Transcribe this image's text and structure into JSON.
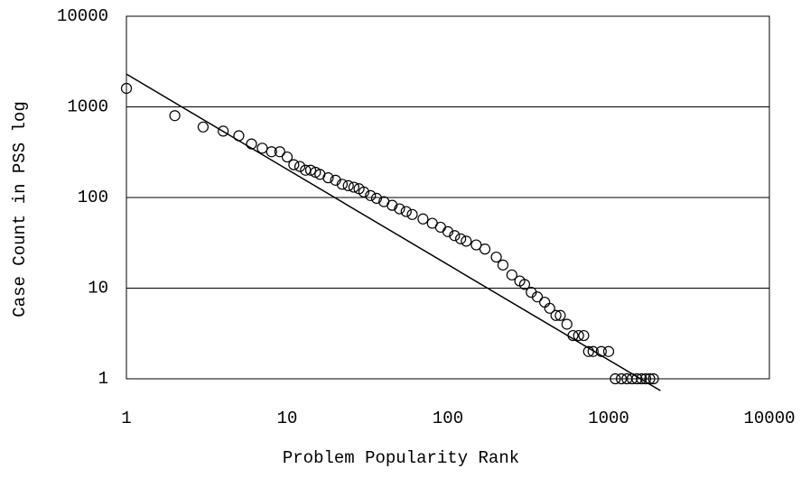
{
  "chart_data": {
    "type": "scatter",
    "x_label": "Problem Popularity Rank",
    "y_label": "Case Count in PSS log",
    "xlim": [
      1,
      10000
    ],
    "ylim": [
      1,
      10000
    ],
    "xticks": [
      1,
      10,
      100,
      1000,
      10000
    ],
    "yticks": [
      1,
      10,
      100,
      1000,
      10000
    ],
    "xlog": true,
    "ylog": true,
    "grid": true,
    "series": [
      {
        "type": "scatter",
        "color": "#000000",
        "x": [
          1,
          2,
          3,
          4,
          5,
          6,
          7,
          8,
          9,
          10,
          11,
          12,
          13,
          14,
          15,
          16,
          18,
          20,
          22,
          24,
          26,
          28,
          30,
          33,
          36,
          40,
          45,
          50,
          55,
          60,
          70,
          80,
          90,
          100,
          110,
          120,
          130,
          150,
          170,
          200,
          220,
          250,
          280,
          300,
          330,
          360,
          400,
          430,
          470,
          500,
          550,
          600,
          650,
          700,
          750,
          800,
          900,
          1000,
          1100,
          1200,
          1300,
          1400,
          1500,
          1600,
          1700,
          1800,
          1900
        ],
        "values": [
          1600,
          800,
          600,
          540,
          480,
          390,
          350,
          320,
          320,
          280,
          230,
          220,
          200,
          200,
          190,
          180,
          165,
          155,
          140,
          135,
          130,
          125,
          115,
          105,
          98,
          90,
          82,
          75,
          70,
          65,
          58,
          52,
          47,
          42,
          38,
          35,
          33,
          30,
          27,
          22,
          18,
          14,
          12,
          11,
          9,
          8,
          7,
          6,
          5,
          5,
          4,
          3,
          3,
          3,
          2,
          2,
          2,
          2,
          1,
          1,
          1,
          1,
          1,
          1,
          1,
          1,
          1
        ]
      },
      {
        "type": "line",
        "color": "#000000",
        "x": [
          1,
          2100
        ],
        "values": [
          2300,
          0.74
        ]
      }
    ]
  }
}
